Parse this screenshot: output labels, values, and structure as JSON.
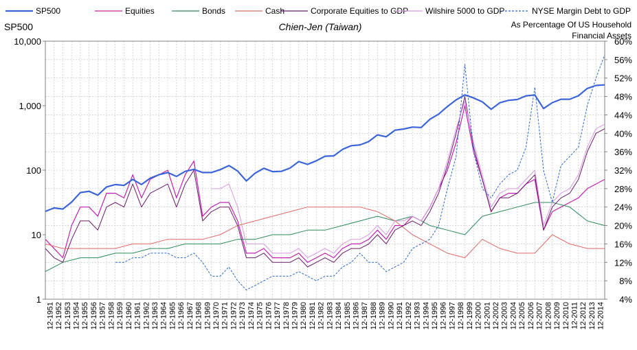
{
  "chart_data": {
    "type": "line",
    "title": "Chien-Jen (Taiwan)",
    "left_axis": {
      "label": "SP500",
      "scale": "log",
      "range": [
        1,
        10000
      ],
      "ticks": [
        1,
        10,
        100,
        1000,
        10000
      ],
      "tick_labels": [
        "1",
        "10",
        "100",
        "1,000",
        "10,000"
      ]
    },
    "right_axis": {
      "label_lines": [
        "As Percentage Of US Household",
        "Financial Assets"
      ],
      "range": [
        4,
        60
      ],
      "ticks": [
        4,
        8,
        12,
        16,
        20,
        24,
        28,
        32,
        36,
        40,
        44,
        48,
        52,
        56,
        60
      ],
      "tick_labels": [
        "4%",
        "8%",
        "12%",
        "16%",
        "20%",
        "24%",
        "28%",
        "32%",
        "36%",
        "40%",
        "44%",
        "48%",
        "52%",
        "56%",
        "60%"
      ]
    },
    "x_labels": [
      "12-1951",
      "12-1952",
      "12-1953",
      "12-1954",
      "12-1955",
      "12-1956",
      "12-1957",
      "12-1958",
      "12-1959",
      "12-1960",
      "12-1961",
      "12-1962",
      "12-1963",
      "12-1964",
      "12-1965",
      "12-1966",
      "12-1967",
      "12-1968",
      "12-1969",
      "12-1970",
      "12-1971",
      "12-1972",
      "12-1973",
      "12-1974",
      "12-1975",
      "12-1976",
      "12-1977",
      "12-1978",
      "12-1979",
      "12-1980",
      "12-1981",
      "12-1982",
      "12-1983",
      "12-1984",
      "12-1985",
      "12-1986",
      "12-1987",
      "12-1988",
      "12-1989",
      "12-1990",
      "12-1991",
      "12-1992",
      "12-1993",
      "12-1994",
      "12-1995",
      "12-1996",
      "12-1997",
      "12-1998",
      "12-1999",
      "12-2000",
      "12-2001",
      "12-2002",
      "12-2003",
      "12-2004",
      "12-2005",
      "12-2006",
      "12-2007",
      "12-2008",
      "12-2009",
      "12-2010",
      "12-2011",
      "12-2012",
      "12-2013",
      "12-2014"
    ],
    "x_range": [
      1951,
      2015
    ],
    "grid": true,
    "legend_position": "top",
    "series": [
      {
        "name": "SP500",
        "axis": "left",
        "color": "#3a64d8",
        "dash": "solid",
        "width": 2.2,
        "x": [
          1951,
          1952,
          1953,
          1954,
          1955,
          1956,
          1957,
          1958,
          1959,
          1960,
          1961,
          1962,
          1963,
          1964,
          1965,
          1966,
          1967,
          1968,
          1969,
          1970,
          1971,
          1972,
          1973,
          1974,
          1975,
          1976,
          1977,
          1978,
          1979,
          1980,
          1981,
          1982,
          1983,
          1984,
          1985,
          1986,
          1987,
          1988,
          1989,
          1990,
          1991,
          1992,
          1993,
          1994,
          1995,
          1996,
          1997,
          1998,
          1999,
          2000,
          2001,
          2002,
          2003,
          2004,
          2005,
          2006,
          2007,
          2008,
          2009,
          2010,
          2011,
          2012,
          2013,
          2014,
          2015
        ],
        "y": [
          23,
          26,
          25,
          32,
          45,
          47,
          41,
          55,
          60,
          58,
          72,
          60,
          75,
          85,
          92,
          80,
          96,
          103,
          92,
          92,
          102,
          118,
          97,
          68,
          90,
          107,
          95,
          96,
          108,
          136,
          123,
          140,
          165,
          167,
          210,
          240,
          247,
          278,
          353,
          330,
          417,
          435,
          466,
          459,
          615,
          740,
          970,
          1230,
          1469,
          1320,
          1148,
          880,
          1110,
          1212,
          1248,
          1418,
          1468,
          903,
          1115,
          1258,
          1258,
          1426,
          1848,
          2059,
          2100
        ]
      },
      {
        "name": "Equities",
        "axis": "right",
        "color": "#c020b0",
        "dash": "solid",
        "width": 1.2,
        "x": [
          1951,
          1952,
          1953,
          1954,
          1955,
          1956,
          1957,
          1958,
          1959,
          1960,
          1961,
          1962,
          1963,
          1964,
          1965,
          1966,
          1967,
          1968,
          1969,
          1970,
          1971,
          1972,
          1973,
          1974,
          1975,
          1976,
          1977,
          1978,
          1979,
          1980,
          1981,
          1982,
          1983,
          1984,
          1985,
          1986,
          1987,
          1988,
          1989,
          1990,
          1991,
          1992,
          1993,
          1994,
          1995,
          1996,
          1997,
          1998,
          1999,
          2000,
          2001,
          2002,
          2003,
          2004,
          2005,
          2006,
          2007,
          2008,
          2009,
          2010,
          2011,
          2012,
          2013,
          2014,
          2015
        ],
        "y": [
          17,
          15,
          13,
          20,
          24,
          24,
          22,
          27,
          27,
          26,
          31,
          26,
          30,
          31,
          32,
          26,
          31,
          34,
          22,
          24,
          25,
          25,
          21,
          14,
          14,
          15,
          13,
          13,
          13,
          14,
          12,
          13,
          14,
          13,
          15,
          16,
          16,
          17,
          19,
          17,
          20,
          20,
          22,
          21,
          24,
          28,
          32,
          38,
          46,
          36,
          30,
          23,
          26,
          27,
          27,
          29,
          30,
          19,
          23,
          24,
          25,
          26,
          28,
          29,
          30
        ]
      },
      {
        "name": "Bonds",
        "axis": "right",
        "color": "#2a8a5a",
        "dash": "solid",
        "width": 1.0,
        "x": [
          1951,
          1953,
          1955,
          1957,
          1959,
          1961,
          1963,
          1965,
          1967,
          1969,
          1971,
          1973,
          1975,
          1977,
          1979,
          1981,
          1983,
          1985,
          1987,
          1989,
          1991,
          1993,
          1995,
          1997,
          1999,
          2001,
          2003,
          2005,
          2007,
          2009,
          2011,
          2013,
          2015
        ],
        "y": [
          10,
          12,
          13,
          13,
          14,
          14,
          15,
          15,
          16,
          16,
          16,
          17,
          17,
          18,
          18,
          19,
          19,
          20,
          21,
          22,
          21,
          22,
          20,
          19,
          18,
          22,
          23,
          24,
          25,
          25,
          24,
          21,
          20
        ]
      },
      {
        "name": "Cash",
        "axis": "right",
        "color": "#e06868",
        "dash": "solid",
        "width": 1.0,
        "x": [
          1951,
          1953,
          1955,
          1957,
          1959,
          1961,
          1963,
          1965,
          1967,
          1969,
          1971,
          1973,
          1975,
          1977,
          1979,
          1981,
          1983,
          1985,
          1987,
          1989,
          1991,
          1993,
          1995,
          1997,
          1999,
          2001,
          2003,
          2005,
          2007,
          2009,
          2011,
          2013,
          2015
        ],
        "y": [
          16,
          15,
          15,
          15,
          15,
          16,
          16,
          17,
          17,
          17,
          18,
          20,
          21,
          22,
          23,
          24,
          24,
          24,
          24,
          23,
          21,
          18,
          16,
          14,
          13,
          17,
          15,
          14,
          14,
          18,
          16,
          15,
          15
        ]
      },
      {
        "name": "Corporate Equities to GDP",
        "axis": "right",
        "color": "#6a1a6a",
        "dash": "solid",
        "width": 1.0,
        "x": [
          1951,
          1952,
          1953,
          1954,
          1955,
          1956,
          1957,
          1958,
          1959,
          1960,
          1961,
          1962,
          1963,
          1964,
          1965,
          1966,
          1967,
          1968,
          1969,
          1970,
          1971,
          1972,
          1973,
          1974,
          1975,
          1976,
          1977,
          1978,
          1979,
          1980,
          1981,
          1982,
          1983,
          1984,
          1985,
          1986,
          1987,
          1988,
          1989,
          1990,
          1991,
          1992,
          1993,
          1994,
          1995,
          1996,
          1997,
          1998,
          1999,
          2000,
          2001,
          2002,
          2003,
          2004,
          2005,
          2006,
          2007,
          2008,
          2009,
          2010,
          2011,
          2012,
          2013,
          2014,
          2015
        ],
        "y": [
          15,
          13,
          12,
          17,
          21,
          21,
          19,
          24,
          25,
          24,
          29,
          24,
          27,
          28,
          29,
          24,
          29,
          32,
          21,
          23,
          24,
          24,
          20,
          13,
          13,
          14,
          12,
          12,
          12,
          13,
          11,
          12,
          13,
          12,
          14,
          15,
          15,
          16,
          18,
          16,
          19,
          20,
          21,
          20,
          23,
          27,
          33,
          40,
          48,
          37,
          30,
          23,
          26,
          26,
          27,
          29,
          31,
          19,
          24,
          26,
          27,
          30,
          36,
          40,
          41
        ]
      },
      {
        "name": "Wilshire 5000 to GDP",
        "axis": "right",
        "color": "#d898e0",
        "dash": "solid",
        "width": 1.0,
        "x": [
          1970,
          1971,
          1972,
          1973,
          1974,
          1975,
          1976,
          1977,
          1978,
          1979,
          1980,
          1981,
          1982,
          1983,
          1984,
          1985,
          1986,
          1987,
          1988,
          1989,
          1990,
          1991,
          1992,
          1993,
          1994,
          1995,
          1996,
          1997,
          1998,
          1999,
          2000,
          2001,
          2002,
          2003,
          2004,
          2005,
          2006,
          2007,
          2008,
          2009,
          2010,
          2011,
          2012,
          2013,
          2014,
          2015
        ],
        "y": [
          28,
          28,
          29,
          24,
          16,
          16,
          16,
          14,
          14,
          14,
          15,
          13,
          14,
          15,
          14,
          16,
          17,
          17,
          18,
          20,
          18,
          21,
          21,
          22,
          21,
          24,
          28,
          34,
          41,
          47,
          38,
          31,
          24,
          27,
          28,
          28,
          30,
          32,
          20,
          25,
          27,
          28,
          31,
          37,
          41,
          42
        ]
      },
      {
        "name": "NYSE Margin Debt to GDP",
        "axis": "right",
        "color": "#2a68c8",
        "dash": "dashed",
        "width": 1.0,
        "x": [
          1959,
          1960,
          1961,
          1962,
          1963,
          1964,
          1965,
          1966,
          1967,
          1968,
          1969,
          1970,
          1971,
          1972,
          1973,
          1974,
          1975,
          1976,
          1977,
          1978,
          1979,
          1980,
          1981,
          1982,
          1983,
          1984,
          1985,
          1986,
          1987,
          1988,
          1989,
          1990,
          1991,
          1992,
          1993,
          1994,
          1995,
          1996,
          1997,
          1998,
          1999,
          2000,
          2001,
          2002,
          2003,
          2004,
          2005,
          2006,
          2007,
          2008,
          2009,
          2010,
          2011,
          2012,
          2013,
          2014,
          2015
        ],
        "y": [
          12,
          12,
          13,
          13,
          14,
          14,
          14,
          13,
          13,
          14,
          12,
          9,
          9,
          11,
          8,
          6,
          7,
          8,
          9,
          9,
          9,
          10,
          9,
          8,
          9,
          9,
          11,
          12,
          14,
          12,
          12,
          10,
          11,
          12,
          15,
          16,
          17,
          20,
          28,
          35,
          55,
          36,
          28,
          26,
          29,
          31,
          32,
          37,
          50,
          32,
          25,
          33,
          35,
          37,
          46,
          52,
          57
        ]
      }
    ]
  }
}
